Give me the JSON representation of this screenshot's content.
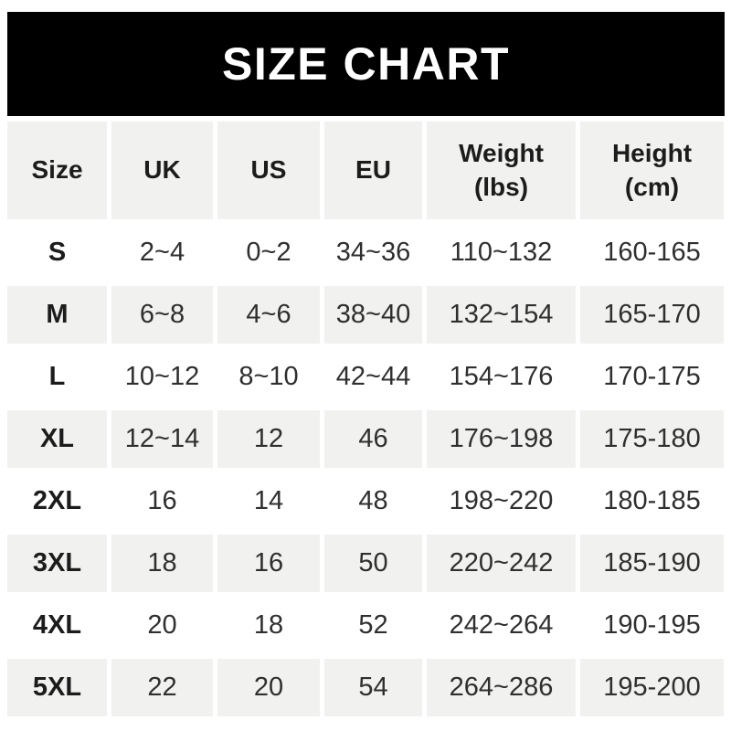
{
  "banner": {
    "title": "SIZE CHART"
  },
  "colors": {
    "banner_bg": "#000000",
    "banner_text": "#ffffff",
    "cell_alt_bg": "#f1f1ef",
    "cell_bg": "#ffffff",
    "header_text": "#1c1c1c",
    "value_text": "#2f2f2f"
  },
  "chart_data": {
    "type": "table",
    "title": "SIZE CHART",
    "columns": [
      "Size",
      "UK",
      "US",
      "EU",
      "Weight (lbs)",
      "Height (cm)"
    ],
    "column_headers_display": [
      "Size",
      "UK",
      "US",
      "EU",
      "Weight\n(lbs)",
      "Height\n(cm)"
    ],
    "rows": [
      {
        "size": "S",
        "uk": "2~4",
        "us": "0~2",
        "eu": "34~36",
        "weight_lbs": "110~132",
        "height_cm": "160-165"
      },
      {
        "size": "M",
        "uk": "6~8",
        "us": "4~6",
        "eu": "38~40",
        "weight_lbs": "132~154",
        "height_cm": "165-170"
      },
      {
        "size": "L",
        "uk": "10~12",
        "us": "8~10",
        "eu": "42~44",
        "weight_lbs": "154~176",
        "height_cm": "170-175"
      },
      {
        "size": "XL",
        "uk": "12~14",
        "us": "12",
        "eu": "46",
        "weight_lbs": "176~198",
        "height_cm": "175-180"
      },
      {
        "size": "2XL",
        "uk": "16",
        "us": "14",
        "eu": "48",
        "weight_lbs": "198~220",
        "height_cm": "180-185"
      },
      {
        "size": "3XL",
        "uk": "18",
        "us": "16",
        "eu": "50",
        "weight_lbs": "220~242",
        "height_cm": "185-190"
      },
      {
        "size": "4XL",
        "uk": "20",
        "us": "18",
        "eu": "52",
        "weight_lbs": "242~264",
        "height_cm": "190-195"
      },
      {
        "size": "5XL",
        "uk": "22",
        "us": "20",
        "eu": "54",
        "weight_lbs": "264~286",
        "height_cm": "195-200"
      }
    ]
  }
}
